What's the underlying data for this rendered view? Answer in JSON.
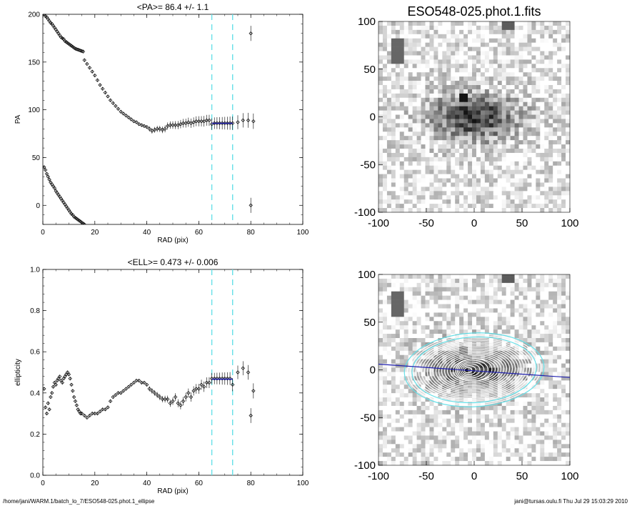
{
  "footer": {
    "left": "/home/jani/WARM.1/batch_lo_7/ESO548-025.phot.1_ellipse",
    "right": "jani@tursas.oulu.fi  Thu Jul 29 15:03:29 2010"
  },
  "chart_data": [
    {
      "type": "scatter",
      "title": "<PA>=  86.4 +/-   1.1",
      "xlabel": "RAD (pix)",
      "ylabel": "PA",
      "xlim": [
        0,
        100
      ],
      "ylim": [
        -20,
        200
      ],
      "xticks": [
        0,
        20,
        40,
        60,
        80,
        100
      ],
      "yticks": [
        0,
        50,
        100,
        150,
        200
      ],
      "vlines": [
        65,
        73
      ],
      "series": [
        {
          "points": [
            [
              0.5,
              200
            ],
            [
              1,
              198
            ],
            [
              1.5,
              197
            ],
            [
              2,
              195
            ],
            [
              2.5,
              193
            ],
            [
              3,
              191
            ],
            [
              3.5,
              190
            ],
            [
              4,
              188
            ],
            [
              4.5,
              186
            ],
            [
              5,
              184
            ],
            [
              5.5,
              182
            ],
            [
              6,
              180
            ],
            [
              6.5,
              178
            ],
            [
              7,
              176
            ],
            [
              7.5,
              175
            ],
            [
              8,
              174
            ],
            [
              8.5,
              172
            ],
            [
              9,
              171
            ],
            [
              9.5,
              170
            ],
            [
              10,
              169
            ],
            [
              10.5,
              168
            ],
            [
              11,
              167
            ],
            [
              11.5,
              166
            ],
            [
              12,
              165
            ],
            [
              12.5,
              164
            ],
            [
              13,
              163.5
            ],
            [
              13.5,
              163
            ],
            [
              14,
              162.5
            ],
            [
              14.5,
              162
            ],
            [
              15,
              161.5
            ],
            [
              15.5,
              161
            ],
            [
              16,
              152
            ],
            [
              17,
              148
            ],
            [
              18,
              144
            ],
            [
              19,
              140
            ],
            [
              20,
              136
            ],
            [
              21,
              131
            ],
            [
              22,
              126
            ],
            [
              23,
              122
            ],
            [
              24,
              118
            ],
            [
              25,
              114
            ],
            [
              26,
              110
            ],
            [
              27,
              107
            ],
            [
              28,
              104
            ],
            [
              29,
              101
            ],
            [
              30,
              98
            ],
            [
              31,
              96
            ],
            [
              32,
              94
            ],
            [
              33,
              92
            ],
            [
              34,
              90
            ],
            [
              35,
              88
            ],
            [
              36,
              87
            ],
            [
              37,
              85
            ],
            [
              38,
              84
            ],
            [
              39,
              83
            ],
            [
              40,
              82
            ],
            [
              41,
              80
            ],
            [
              42,
              78
            ],
            [
              43,
              79
            ],
            [
              44,
              80
            ],
            [
              45,
              80
            ],
            [
              46,
              79
            ],
            [
              47,
              80
            ],
            [
              48,
              83
            ],
            [
              49,
              84
            ],
            [
              50,
              84
            ],
            [
              51,
              84
            ],
            [
              52,
              84
            ],
            [
              53,
              85
            ],
            [
              54,
              86
            ],
            [
              55,
              86
            ],
            [
              56,
              87
            ],
            [
              57,
              86
            ],
            [
              58,
              87
            ],
            [
              59,
              88
            ],
            [
              60,
              88
            ],
            [
              61,
              88
            ],
            [
              62,
              88
            ],
            [
              63,
              89
            ],
            [
              64,
              89
            ],
            [
              65,
              85
            ],
            [
              66,
              86
            ],
            [
              67,
              86
            ],
            [
              68,
              86
            ],
            [
              69,
              86
            ],
            [
              70,
              86
            ],
            [
              71,
              86
            ],
            [
              72,
              86
            ],
            [
              73,
              86
            ],
            [
              75,
              87
            ],
            [
              77,
              89
            ],
            [
              79,
              89
            ],
            [
              81,
              88
            ],
            [
              80,
              180
            ],
            [
              80,
              0
            ],
            [
              0.5,
              40
            ],
            [
              1,
              37
            ],
            [
              1.5,
              33
            ],
            [
              2,
              30
            ],
            [
              2.5,
              27
            ],
            [
              3,
              24
            ],
            [
              3.5,
              22
            ],
            [
              4,
              20
            ],
            [
              4.5,
              18
            ],
            [
              5,
              15
            ],
            [
              5.5,
              13
            ],
            [
              6,
              11
            ],
            [
              6.5,
              9
            ],
            [
              7,
              7
            ],
            [
              7.5,
              5
            ],
            [
              8,
              3
            ],
            [
              8.5,
              1
            ],
            [
              9,
              -1
            ],
            [
              9.5,
              -3
            ],
            [
              10,
              -5
            ],
            [
              10.5,
              -7
            ],
            [
              11,
              -9
            ],
            [
              11.5,
              -10
            ],
            [
              12,
              -12
            ],
            [
              12.5,
              -13
            ],
            [
              13,
              -14
            ],
            [
              13.5,
              -15
            ],
            [
              14,
              -16
            ],
            [
              14.5,
              -17
            ],
            [
              15,
              -18
            ],
            [
              15.5,
              -19
            ],
            [
              16,
              -20
            ]
          ]
        }
      ]
    },
    {
      "type": "heatmap",
      "title": "ESO548-025.phot.1.fits",
      "xlim": [
        -100,
        100
      ],
      "ylim": [
        -100,
        100
      ],
      "xticks": [
        -100,
        -50,
        0,
        50,
        100
      ],
      "yticks": [
        -100,
        -50,
        0,
        50,
        100
      ],
      "colormap": "inverted-gray"
    },
    {
      "type": "scatter",
      "title": "<ELL>= 0.473 +/-  0.006",
      "xlabel": "RAD (pix)",
      "ylabel": "ellipticity",
      "xlim": [
        0,
        100
      ],
      "ylim": [
        0,
        1
      ],
      "xticks": [
        0,
        20,
        40,
        60,
        80,
        100
      ],
      "yticks": [
        0.0,
        0.2,
        0.4,
        0.6,
        0.8,
        1.0
      ],
      "vlines": [
        65,
        73
      ],
      "series": [
        {
          "points": [
            [
              0.5,
              0.42
            ],
            [
              1,
              0.33
            ],
            [
              1.5,
              0.3
            ],
            [
              2,
              0.35
            ],
            [
              2.5,
              0.32
            ],
            [
              3,
              0.38
            ],
            [
              3.5,
              0.4
            ],
            [
              4,
              0.43
            ],
            [
              4.5,
              0.45
            ],
            [
              5,
              0.44
            ],
            [
              5.5,
              0.46
            ],
            [
              6,
              0.47
            ],
            [
              6.5,
              0.48
            ],
            [
              7,
              0.46
            ],
            [
              7.5,
              0.45
            ],
            [
              8,
              0.47
            ],
            [
              8.5,
              0.48
            ],
            [
              9,
              0.49
            ],
            [
              9.5,
              0.5
            ],
            [
              10,
              0.49
            ],
            [
              10.5,
              0.47
            ],
            [
              11,
              0.44
            ],
            [
              11.5,
              0.41
            ],
            [
              12,
              0.38
            ],
            [
              12.5,
              0.36
            ],
            [
              13,
              0.34
            ],
            [
              13.5,
              0.32
            ],
            [
              14,
              0.31
            ],
            [
              14.5,
              0.3
            ],
            [
              15,
              0.3
            ],
            [
              16,
              0.29
            ],
            [
              17,
              0.28
            ],
            [
              18,
              0.29
            ],
            [
              19,
              0.3
            ],
            [
              20,
              0.3
            ],
            [
              21,
              0.3
            ],
            [
              22,
              0.31
            ],
            [
              23,
              0.32
            ],
            [
              24,
              0.32
            ],
            [
              25,
              0.33
            ],
            [
              26,
              0.36
            ],
            [
              27,
              0.38
            ],
            [
              28,
              0.39
            ],
            [
              29,
              0.4
            ],
            [
              30,
              0.4
            ],
            [
              31,
              0.41
            ],
            [
              32,
              0.42
            ],
            [
              33,
              0.43
            ],
            [
              34,
              0.44
            ],
            [
              35,
              0.45
            ],
            [
              36,
              0.46
            ],
            [
              37,
              0.46
            ],
            [
              38,
              0.45
            ],
            [
              39,
              0.45
            ],
            [
              40,
              0.44
            ],
            [
              41,
              0.42
            ],
            [
              42,
              0.41
            ],
            [
              43,
              0.4
            ],
            [
              44,
              0.39
            ],
            [
              45,
              0.38
            ],
            [
              46,
              0.37
            ],
            [
              47,
              0.37
            ],
            [
              48,
              0.37
            ],
            [
              49,
              0.35
            ],
            [
              50,
              0.36
            ],
            [
              51,
              0.38
            ],
            [
              52,
              0.35
            ],
            [
              53,
              0.34
            ],
            [
              54,
              0.36
            ],
            [
              55,
              0.38
            ],
            [
              56,
              0.4
            ],
            [
              57,
              0.38
            ],
            [
              58,
              0.41
            ],
            [
              59,
              0.42
            ],
            [
              60,
              0.42
            ],
            [
              61,
              0.44
            ],
            [
              62,
              0.43
            ],
            [
              63,
              0.45
            ],
            [
              64,
              0.45
            ],
            [
              65,
              0.47
            ],
            [
              66,
              0.47
            ],
            [
              67,
              0.47
            ],
            [
              68,
              0.47
            ],
            [
              69,
              0.47
            ],
            [
              70,
              0.47
            ],
            [
              71,
              0.47
            ],
            [
              72,
              0.47
            ],
            [
              73,
              0.44
            ],
            [
              75,
              0.5
            ],
            [
              77,
              0.52
            ],
            [
              79,
              0.5
            ],
            [
              81,
              0.41
            ],
            [
              80,
              0.29
            ]
          ]
        }
      ]
    },
    {
      "type": "heatmap",
      "title": "",
      "xlim": [
        -100,
        100
      ],
      "ylim": [
        -100,
        100
      ],
      "xticks": [
        -100,
        -50,
        0,
        50,
        100
      ],
      "yticks": [
        -100,
        -50,
        0,
        50,
        100
      ],
      "colormap": "inverted-gray",
      "overlay": "fitted isophote ellipses"
    }
  ]
}
